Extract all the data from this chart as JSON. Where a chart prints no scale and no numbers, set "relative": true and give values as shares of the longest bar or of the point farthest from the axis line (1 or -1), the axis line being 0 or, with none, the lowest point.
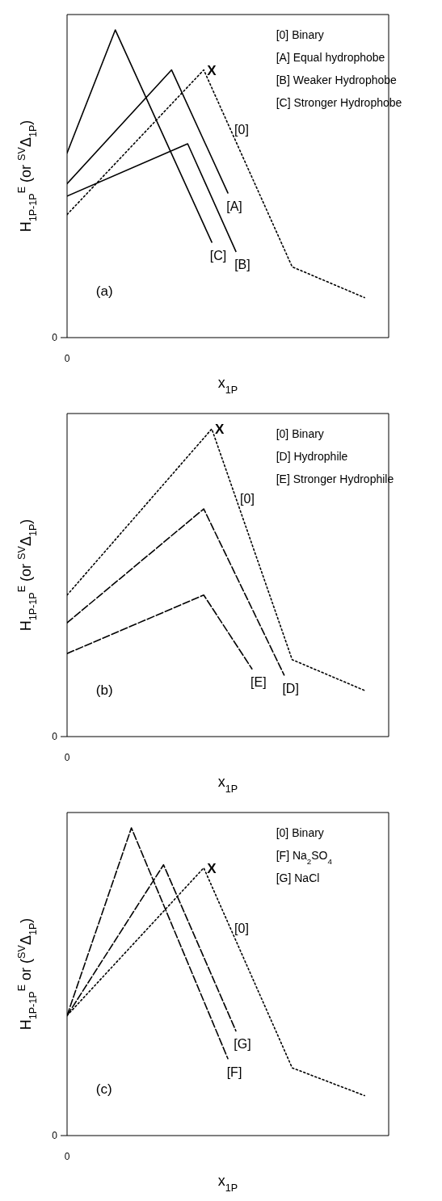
{
  "chart_data": [
    {
      "type": "line",
      "relative": true,
      "ylabel": "H$_{1P-1P}$$^{E}$ (or $^{SV}$Δ$_{1P}$)",
      "xlabel": "x$_{1P}$",
      "categories": [
        null,
        null,
        null,
        null,
        null,
        null,
        null,
        null,
        null,
        null,
        null,
        null,
        null,
        null,
        null,
        null,
        null,
        null,
        null,
        null,
        null,
        null,
        null,
        null,
        null,
        null,
        null,
        null,
        null,
        null,
        null,
        null,
        null,
        null,
        null,
        null,
        null,
        null,
        null,
        null,
        null
      ],
      "series": [
        {
          "name": "[0]",
          "color": "#000000",
          "line_style": "dotted",
          "values": [
            0.4,
            null,
            null,
            null,
            null,
            null,
            null,
            null,
            null,
            null,
            null,
            null,
            null,
            null,
            null,
            null,
            null,
            0.87,
            null,
            null,
            null,
            null,
            null,
            null,
            null,
            null,
            null,
            null,
            0.23,
            null,
            null,
            null,
            null,
            null,
            null,
            null,
            null,
            0.13,
            null,
            null,
            null
          ]
        },
        {
          "name": "[A]",
          "color": "#000000",
          "line_style": "solid",
          "values": [
            0.5,
            null,
            null,
            null,
            null,
            null,
            null,
            null,
            null,
            null,
            null,
            null,
            null,
            0.87,
            null,
            null,
            null,
            null,
            null,
            null,
            0.47,
            null,
            null,
            null,
            null,
            null,
            null,
            null,
            null,
            null,
            null,
            null,
            null,
            null,
            null,
            null,
            null,
            null,
            null,
            null,
            null
          ]
        },
        {
          "name": "[B]",
          "color": "#000000",
          "line_style": "solid",
          "values": [
            0.46,
            null,
            null,
            null,
            null,
            null,
            null,
            null,
            null,
            null,
            null,
            null,
            null,
            null,
            null,
            0.63,
            null,
            null,
            null,
            null,
            null,
            0.28,
            null,
            null,
            null,
            null,
            null,
            null,
            null,
            null,
            null,
            null,
            null,
            null,
            null,
            null,
            null,
            null,
            null,
            null,
            null
          ]
        },
        {
          "name": "[C]",
          "color": "#000000",
          "line_style": "solid",
          "values": [
            0.6,
            null,
            null,
            null,
            null,
            null,
            1,
            null,
            null,
            null,
            null,
            null,
            null,
            null,
            null,
            null,
            null,
            null,
            0.31,
            null,
            null,
            null,
            null,
            null,
            null,
            null,
            null,
            null,
            null,
            null,
            null,
            null,
            null,
            null,
            null,
            null,
            null,
            null,
            null,
            null,
            null
          ]
        }
      ],
      "annotations": [
        "[0] Binary",
        "[A] Equal hydrophobe",
        "[B] Weaker Hydrophobe",
        "[C] Stronger Hydrophobe",
        "X",
        "(a)",
        "0",
        "0"
      ]
    },
    {
      "type": "line",
      "relative": true,
      "ylabel": "H$_{1P-1P}$$^{E}$ (or $^{SV}$Δ$_{1P}$)",
      "xlabel": "x$_{1P}$",
      "categories": [
        null,
        null,
        null,
        null,
        null,
        null,
        null,
        null,
        null,
        null,
        null,
        null,
        null,
        null,
        null,
        null,
        null,
        null,
        null,
        null,
        null,
        null,
        null,
        null,
        null,
        null,
        null,
        null,
        null,
        null,
        null,
        null,
        null,
        null,
        null,
        null,
        null,
        null,
        null,
        null,
        null
      ],
      "series": [
        {
          "name": "[0]",
          "color": "#000000",
          "line_style": "dotted",
          "values": [
            0.46,
            null,
            null,
            null,
            null,
            null,
            null,
            null,
            null,
            null,
            null,
            null,
            null,
            null,
            null,
            null,
            null,
            null,
            1,
            null,
            null,
            null,
            null,
            null,
            null,
            null,
            null,
            null,
            0.25,
            null,
            null,
            null,
            null,
            null,
            null,
            null,
            null,
            0.15,
            null,
            null,
            null
          ]
        },
        {
          "name": "[D]",
          "color": "#000000",
          "line_style": "dashed",
          "values": [
            0.37,
            null,
            null,
            null,
            null,
            null,
            null,
            null,
            null,
            null,
            null,
            null,
            null,
            null,
            null,
            null,
            null,
            0.74,
            null,
            null,
            null,
            null,
            null,
            null,
            null,
            null,
            null,
            0.2,
            null,
            null,
            null,
            null,
            null,
            null,
            null,
            null,
            null,
            null,
            null,
            null,
            null
          ]
        },
        {
          "name": "[E]",
          "color": "#000000",
          "line_style": "dashed",
          "values": [
            0.27,
            null,
            null,
            null,
            null,
            null,
            null,
            null,
            null,
            null,
            null,
            null,
            null,
            null,
            null,
            null,
            null,
            0.46,
            null,
            null,
            null,
            null,
            null,
            0.22,
            null,
            null,
            null,
            null,
            null,
            null,
            null,
            null,
            null,
            null,
            null,
            null,
            null,
            null,
            null,
            null,
            null
          ]
        }
      ],
      "annotations": [
        "[0] Binary",
        "[D] Hydrophile",
        "[E] Stronger Hydrophile",
        "X",
        "(b)",
        "0",
        "0"
      ]
    },
    {
      "type": "line",
      "relative": true,
      "ylabel": "H$_{1P-1P}$$^{E}$ or ($^{SV}$Δ$_{1P}$)",
      "xlabel": "x$_{1P}$",
      "categories": [
        null,
        null,
        null,
        null,
        null,
        null,
        null,
        null,
        null,
        null,
        null,
        null,
        null,
        null,
        null,
        null,
        null,
        null,
        null,
        null,
        null,
        null,
        null,
        null,
        null,
        null,
        null,
        null,
        null,
        null,
        null,
        null,
        null,
        null,
        null,
        null,
        null,
        null,
        null,
        null,
        null
      ],
      "series": [
        {
          "name": "[0]",
          "color": "#000000",
          "line_style": "dotted",
          "values": [
            0.39,
            null,
            null,
            null,
            null,
            null,
            null,
            null,
            null,
            null,
            null,
            null,
            null,
            null,
            null,
            null,
            null,
            0.87,
            null,
            null,
            null,
            null,
            null,
            null,
            null,
            null,
            null,
            null,
            0.22,
            null,
            null,
            null,
            null,
            null,
            null,
            null,
            null,
            0.13,
            null,
            null,
            null
          ]
        },
        {
          "name": "[F]",
          "color": "#000000",
          "line_style": "dashed",
          "values": [
            0.39,
            null,
            null,
            null,
            null,
            null,
            null,
            null,
            1,
            null,
            null,
            null,
            null,
            null,
            null,
            null,
            null,
            null,
            null,
            null,
            0.25,
            null,
            null,
            null,
            null,
            null,
            null,
            null,
            null,
            null,
            null,
            null,
            null,
            null,
            null,
            null,
            null,
            null,
            null,
            null,
            null
          ]
        },
        {
          "name": "[G]",
          "color": "#000000",
          "line_style": "dashed",
          "values": [
            0.39,
            null,
            null,
            null,
            null,
            null,
            null,
            null,
            null,
            null,
            null,
            null,
            0.88,
            null,
            null,
            null,
            null,
            null,
            null,
            null,
            null,
            0.34,
            null,
            null,
            null,
            null,
            null,
            null,
            null,
            null,
            null,
            null,
            null,
            null,
            null,
            null,
            null,
            null,
            null,
            null,
            null
          ]
        }
      ],
      "annotations": [
        "[0] Binary",
        "[F] Na$_{2}$SO$_{4}$",
        "[G] NaCl",
        "X",
        "(c)",
        "0",
        "0"
      ]
    }
  ]
}
